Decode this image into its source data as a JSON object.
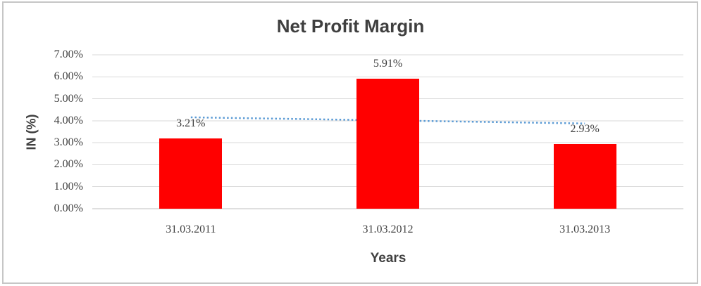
{
  "window": {
    "background": "#ffffff",
    "frame_border_color": "#c6c6c6"
  },
  "chart_data": {
    "type": "bar",
    "title": "Net Profit Margin",
    "xlabel": "Years",
    "ylabel": "IN (%)",
    "categories": [
      "31.03.2011",
      "31.03.2012",
      "31.03.2013"
    ],
    "series": [
      {
        "name": "Net Profit Margin",
        "values": [
          3.21,
          5.91,
          2.93
        ],
        "color": "#ff0000"
      }
    ],
    "data_labels": [
      "3.21%",
      "5.91%",
      "2.93%"
    ],
    "y_ticks": [
      "0.00%",
      "1.00%",
      "2.00%",
      "3.00%",
      "4.00%",
      "5.00%",
      "6.00%",
      "7.00%"
    ],
    "ylim": [
      0,
      7
    ],
    "grid": true,
    "legend": "none",
    "trendline": {
      "type": "linear",
      "style": "dotted",
      "color": "#5b9bd5"
    },
    "colors": {
      "gridline": "#d9d9d9",
      "axis_line": "#bfbfbf",
      "text": "#404040",
      "title_text": "#3f3f3f"
    }
  }
}
